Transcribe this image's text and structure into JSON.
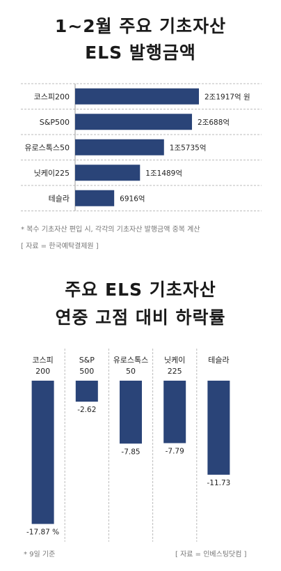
{
  "chart_data": [
    {
      "type": "bar",
      "orientation": "horizontal",
      "title": "1~2월 주요 기초자산\nELS 발행금액",
      "title_lines": [
        "1~2월 주요 기초자산",
        "ELS 발행금액"
      ],
      "categories": [
        "코스피200",
        "S&P500",
        "유로스톡스50",
        "닛케이225",
        "테슬라"
      ],
      "values": [
        21917,
        20688,
        15735,
        11489,
        6916
      ],
      "value_labels": [
        "2조1917억 원",
        "2조688억",
        "1조5735억",
        "1조1489억",
        "6916억"
      ],
      "unit": "억 원",
      "bar_color": "#2a4478",
      "notes": [
        "*  복수 기초자산 편입 시, 각각의 기초자산 발행금액 중복 계산",
        "[ 자료 = 한국예탁결제원 ]"
      ]
    },
    {
      "type": "bar",
      "orientation": "vertical",
      "title": "주요 ELS 기초자산\n연중 고점 대비 하락률",
      "title_lines": [
        "주요 ELS 기초자산",
        "연중 고점 대비 하락률"
      ],
      "categories": [
        "코스피\n200",
        "S&P\n500",
        "유로스톡스\n50",
        "닛케이\n225",
        "테슬라"
      ],
      "category_lines": [
        [
          "코스피",
          "200"
        ],
        [
          "S&P",
          "500"
        ],
        [
          "유로스톡스",
          "50"
        ],
        [
          "닛케이",
          "225"
        ],
        [
          "테슬라"
        ]
      ],
      "values": [
        -17.87,
        -2.62,
        -7.85,
        -7.79,
        -11.73
      ],
      "value_labels": [
        "-17.87 %",
        "-2.62",
        "-7.85",
        "-7.79",
        "-11.73"
      ],
      "unit": "%",
      "bar_color": "#2a4478",
      "notes": [
        "*  9일 기준",
        "[ 자료 = 인베스팅닷컴 ]"
      ]
    }
  ]
}
